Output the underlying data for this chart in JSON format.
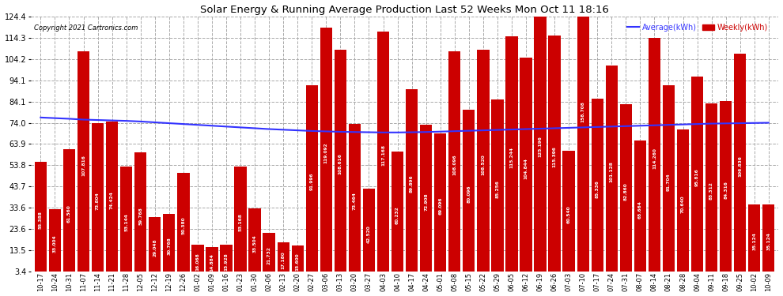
{
  "title": "Solar Energy & Running Average Production Last 52 Weeks Mon Oct 11 18:16",
  "copyright": "Copyright 2021 Cartronics.com",
  "legend_avg": "Average(kWh)",
  "legend_weekly": "Weekly(kWh)",
  "bar_color": "#cc0000",
  "avg_line_color": "#3333ff",
  "background_color": "#ffffff",
  "plot_bg_color": "#ffffff",
  "ylim": [
    3.4,
    124.4
  ],
  "yticks": [
    3.4,
    13.5,
    23.6,
    33.6,
    43.7,
    53.8,
    63.9,
    74.0,
    84.1,
    94.1,
    104.2,
    114.3,
    124.4
  ],
  "categories": [
    "10-17",
    "10-24",
    "10-31",
    "11-07",
    "11-14",
    "11-21",
    "11-28",
    "12-05",
    "12-12",
    "12-19",
    "12-26",
    "01-02",
    "01-09",
    "01-16",
    "01-23",
    "01-30",
    "02-06",
    "02-13",
    "02-20",
    "02-27",
    "03-06",
    "03-13",
    "03-20",
    "03-27",
    "04-03",
    "04-10",
    "04-17",
    "04-24",
    "05-01",
    "05-08",
    "05-15",
    "05-22",
    "05-29",
    "06-05",
    "06-12",
    "06-19",
    "06-26",
    "07-03",
    "07-10",
    "07-17",
    "07-24",
    "07-31",
    "08-07",
    "08-14",
    "08-21",
    "08-28",
    "09-04",
    "09-11",
    "09-18",
    "09-25",
    "10-02",
    "10-09"
  ],
  "weekly_values": [
    55.388,
    33.004,
    61.56,
    107.816,
    73.804,
    74.424,
    53.144,
    59.768,
    29.048,
    30.768,
    50.38,
    16.068,
    14.884,
    15.928,
    53.168,
    33.504,
    21.732,
    17.18,
    15.6,
    91.996,
    119.092,
    108.616,
    73.464,
    42.52,
    117.168,
    60.232,
    89.896,
    72.908,
    69.096,
    108.096,
    80.096,
    108.52,
    85.256,
    115.244,
    104.844,
    125.196,
    115.396,
    60.54,
    158.708,
    85.336,
    101.128,
    82.86,
    65.664,
    114.26,
    91.704,
    70.64,
    95.816,
    83.312,
    84.316,
    106.836,
    35.124,
    35.124
  ],
  "avg_values": [
    76.5,
    76.2,
    75.9,
    75.5,
    75.3,
    75.1,
    74.9,
    74.6,
    74.2,
    73.8,
    73.4,
    73.0,
    72.6,
    72.2,
    71.8,
    71.4,
    71.0,
    70.7,
    70.4,
    70.1,
    69.9,
    69.7,
    69.6,
    69.5,
    69.4,
    69.4,
    69.5,
    69.6,
    69.8,
    70.0,
    70.2,
    70.4,
    70.6,
    70.8,
    71.0,
    71.2,
    71.4,
    71.6,
    71.8,
    72.0,
    72.2,
    72.4,
    72.6,
    72.8,
    73.0,
    73.2,
    73.4,
    73.6,
    73.7,
    73.8,
    73.9,
    74.0
  ]
}
